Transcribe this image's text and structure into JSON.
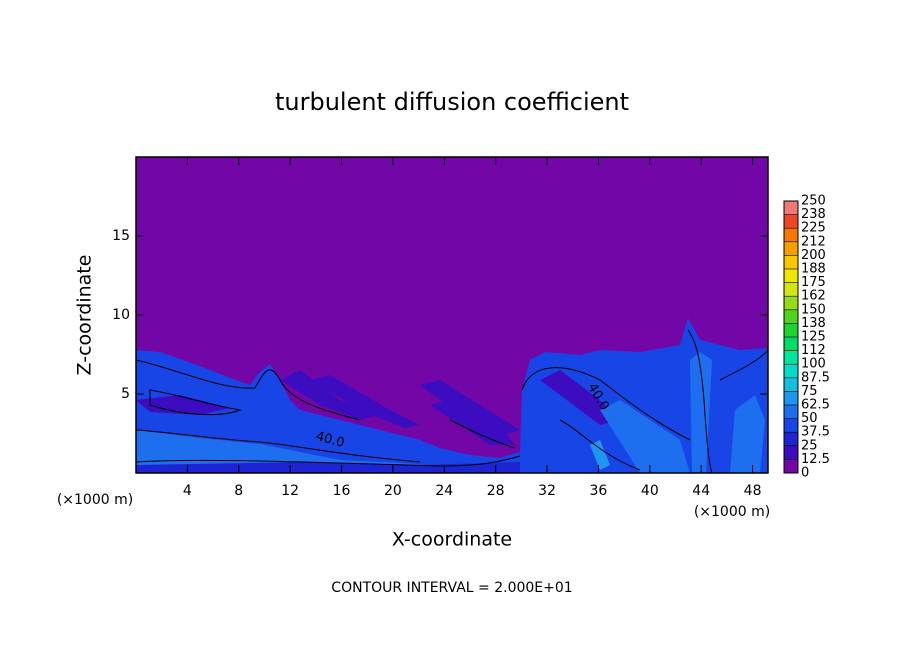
{
  "chart_data": {
    "type": "contour",
    "title": "turbulent diffusion coefficient",
    "xlabel": "X-coordinate",
    "ylabel": "Z-coordinate",
    "x_unit": "(×1000 m)",
    "footer": "CONTOUR INTERVAL = 2.000E+01",
    "contour_labels": [
      "40.0",
      "40.0"
    ],
    "xlim": [
      0,
      49.2
    ],
    "ylim": [
      0,
      20
    ],
    "xticks": [
      4,
      8,
      12,
      16,
      20,
      24,
      28,
      32,
      36,
      40,
      44,
      48
    ],
    "yticks": [
      5,
      10,
      15
    ],
    "colorbar": {
      "levels": [
        0,
        12.5,
        25,
        37.5,
        50,
        62.5,
        75,
        87.5,
        100,
        112,
        125,
        138,
        150,
        162,
        175,
        188,
        200,
        212,
        225,
        238,
        250
      ],
      "colors": [
        "#7306a6",
        "#3c0dc0",
        "#1e24d2",
        "#1846e6",
        "#1e6ef0",
        "#1e96f0",
        "#14bedc",
        "#00dcc8",
        "#00e6a0",
        "#00dc64",
        "#1ed232",
        "#50d21e",
        "#96dc14",
        "#d2e614",
        "#f0e600",
        "#f5c800",
        "#f5a000",
        "#f57800",
        "#f04628",
        "#f07878"
      ]
    }
  }
}
